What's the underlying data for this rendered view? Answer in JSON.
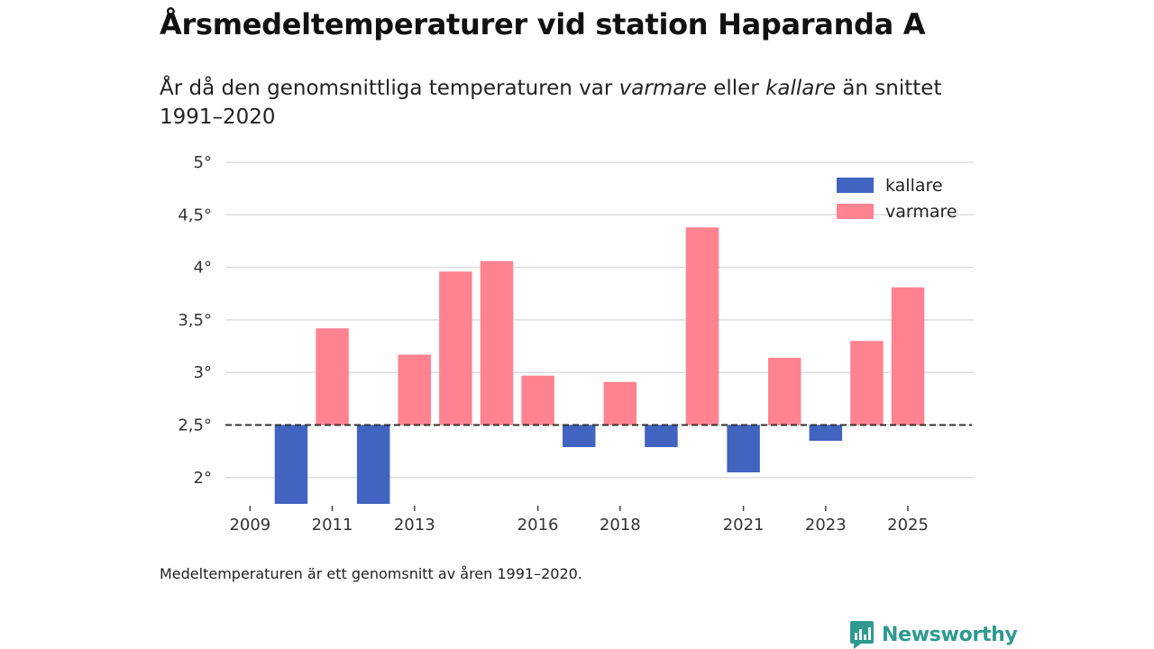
{
  "header": {
    "title": "Årsmedeltemperaturer vid station Haparanda A",
    "subtitle_part1": "År då den genomsnittliga temperaturen var ",
    "subtitle_warm": "varmare",
    "subtitle_part2": " eller ",
    "subtitle_cold": "kallare",
    "subtitle_part3": " än snittet 1991–2020"
  },
  "footer": {
    "note": "Medeltemperaturen är ett genomsnitt av åren 1991–2020.",
    "brand": "Newsworthy"
  },
  "colors": {
    "warm": "#ff8291",
    "cold": "#4164c1",
    "brand": "#2e9a8f",
    "grid": "#dddddd"
  },
  "chart_data": {
    "type": "bar",
    "title": "Årsmedeltemperaturer vid station Haparanda A",
    "baseline": 2.5,
    "ylim": [
      1.75,
      5
    ],
    "yticks": [
      2,
      2.5,
      3,
      3.5,
      4,
      4.5,
      5
    ],
    "ytick_labels": [
      "2°",
      "2,5°",
      "3°",
      "3,5°",
      "4°",
      "4,5°",
      "5°"
    ],
    "xlim": [
      2008.4,
      2026.6
    ],
    "xticks": [
      2009,
      2011,
      2013,
      2016,
      2018,
      2021,
      2023,
      2025
    ],
    "xtick_labels": [
      "2009",
      "2011",
      "2013",
      "2016",
      "2018",
      "2021",
      "2023",
      "2025"
    ],
    "legend_position": "top-right",
    "series": [
      {
        "name": "kallare",
        "color": "#4164c1"
      },
      {
        "name": "varmare",
        "color": "#ff8291"
      }
    ],
    "years": [
      2009,
      2010,
      2011,
      2012,
      2013,
      2014,
      2015,
      2016,
      2017,
      2018,
      2019,
      2020,
      2021,
      2022,
      2023,
      2024,
      2025
    ],
    "values": [
      2.5,
      1.75,
      3.42,
      1.75,
      3.17,
      3.96,
      4.06,
      2.97,
      2.29,
      2.91,
      2.29,
      4.38,
      2.05,
      3.14,
      2.35,
      3.3,
      3.81
    ]
  }
}
